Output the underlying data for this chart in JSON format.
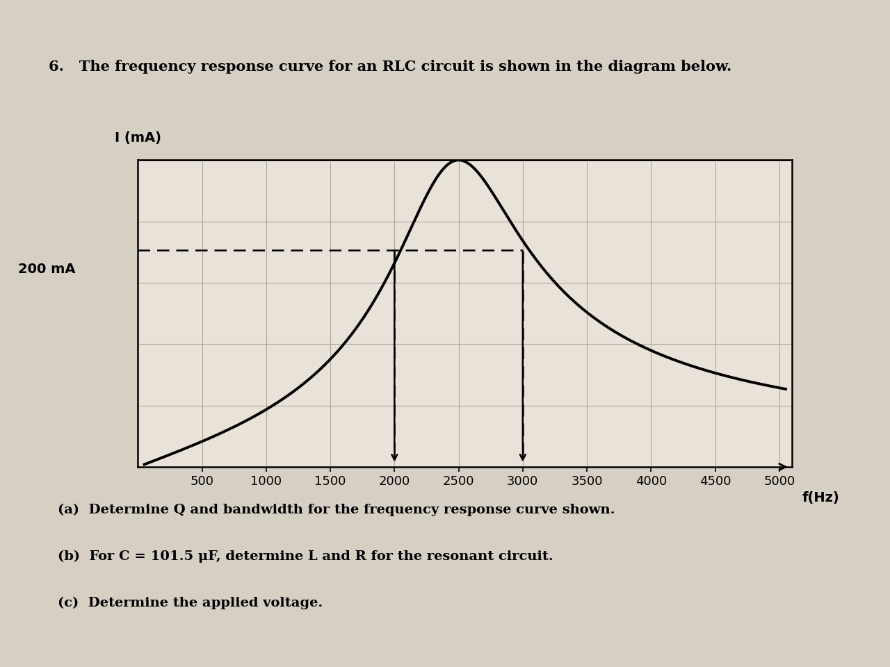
{
  "title_line1": "6.   The frequency response curve for an RLC circuit is shown in the diagram below.",
  "ylabel": "I (mA)",
  "xlabel": "f(Hz)",
  "ylabel_left": "200 mA",
  "x_ticks": [
    500,
    1000,
    1500,
    2000,
    2500,
    3000,
    3500,
    4000,
    4500,
    5000
  ],
  "x_min": 0,
  "x_max": 5100,
  "y_min": 0,
  "y_max": 200,
  "resonant_freq": 2500,
  "peak_current": 200,
  "bandwidth_low": 2000,
  "bandwidth_high": 3000,
  "half_power_current": 141.4,
  "curve_color": "#000000",
  "dashed_line_color": "#000000",
  "hline_color": "#000000",
  "grid_color": "#b0a898",
  "bg_color": "#d6cfc4",
  "plot_bg": "#e8e2d8",
  "questions": [
    "(a)  Determine Q and bandwidth for the frequency response curve shown.",
    "(b)  For C = 101.5 μF, determine L and R for the resonant circuit.",
    "(c)  Determine the applied voltage."
  ]
}
